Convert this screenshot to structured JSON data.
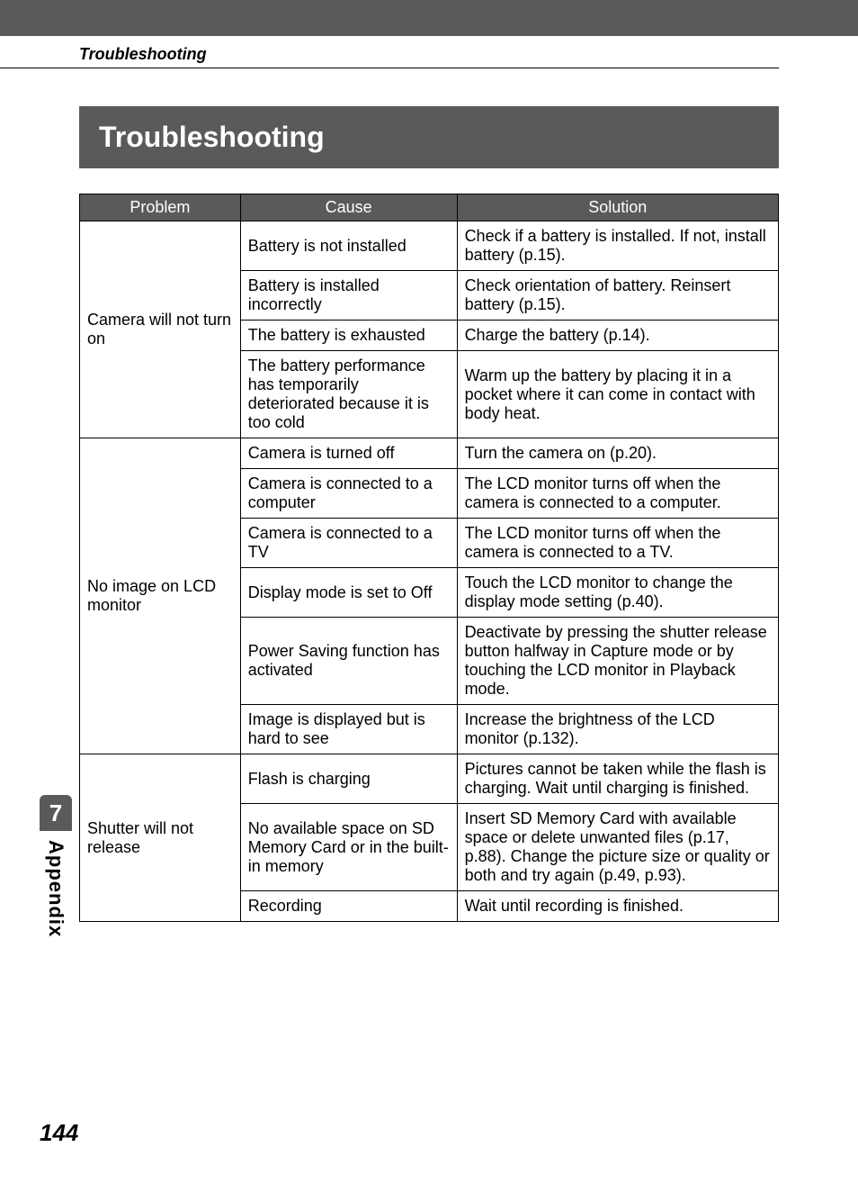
{
  "section_label": "Troubleshooting",
  "title_bar": "Troubleshooting",
  "headers": {
    "problem": "Problem",
    "cause": "Cause",
    "solution": "Solution"
  },
  "groups": [
    {
      "problem": "Camera will not turn on",
      "rows": [
        {
          "cause": "Battery is not installed",
          "solution": "Check if a battery is installed. If not, install battery (p.15)."
        },
        {
          "cause": "Battery is installed incorrectly",
          "solution": "Check orientation of battery. Reinsert battery (p.15)."
        },
        {
          "cause": "The battery is exhausted",
          "solution": "Charge the battery (p.14)."
        },
        {
          "cause": "The battery performance has temporarily deteriorated because it is too cold",
          "solution": "Warm up the battery by placing it in a pocket where it can come in contact with body heat."
        }
      ]
    },
    {
      "problem": "No image on LCD monitor",
      "rows": [
        {
          "cause": "Camera is turned off",
          "solution": "Turn the camera on (p.20)."
        },
        {
          "cause": "Camera is connected to a computer",
          "solution": "The LCD monitor turns off when the camera is connected to a computer."
        },
        {
          "cause": "Camera is connected to a TV",
          "solution": "The LCD monitor turns off when the camera is connected to a TV."
        },
        {
          "cause": "Display mode is set to Off",
          "solution": "Touch the LCD monitor to change the display mode setting (p.40)."
        },
        {
          "cause": "Power Saving function has activated",
          "solution": "Deactivate by pressing the shutter release button halfway in Capture mode or by touching the LCD monitor in Playback mode."
        },
        {
          "cause": "Image is displayed but is hard to see",
          "solution": "Increase the brightness of the LCD monitor (p.132)."
        }
      ]
    },
    {
      "problem": "Shutter will not release",
      "rows": [
        {
          "cause": "Flash is charging",
          "solution": "Pictures cannot be taken while the flash is charging. Wait until charging is finished."
        },
        {
          "cause": "No available space on SD Memory Card or in the built-in memory",
          "solution": "Insert SD Memory Card with available space or delete unwanted files (p.17, p.88). Change the picture size or quality or both and try again (p.49, p.93)."
        },
        {
          "cause": "Recording",
          "solution": "Wait until recording is finished."
        }
      ]
    }
  ],
  "side_tab": {
    "number": "7",
    "label": "Appendix"
  },
  "page_number": "144",
  "colors": {
    "bar_bg": "#5a5a5a",
    "bar_fg": "#ffffff",
    "page_bg": "#ffffff",
    "text": "#000000",
    "border": "#000000"
  }
}
